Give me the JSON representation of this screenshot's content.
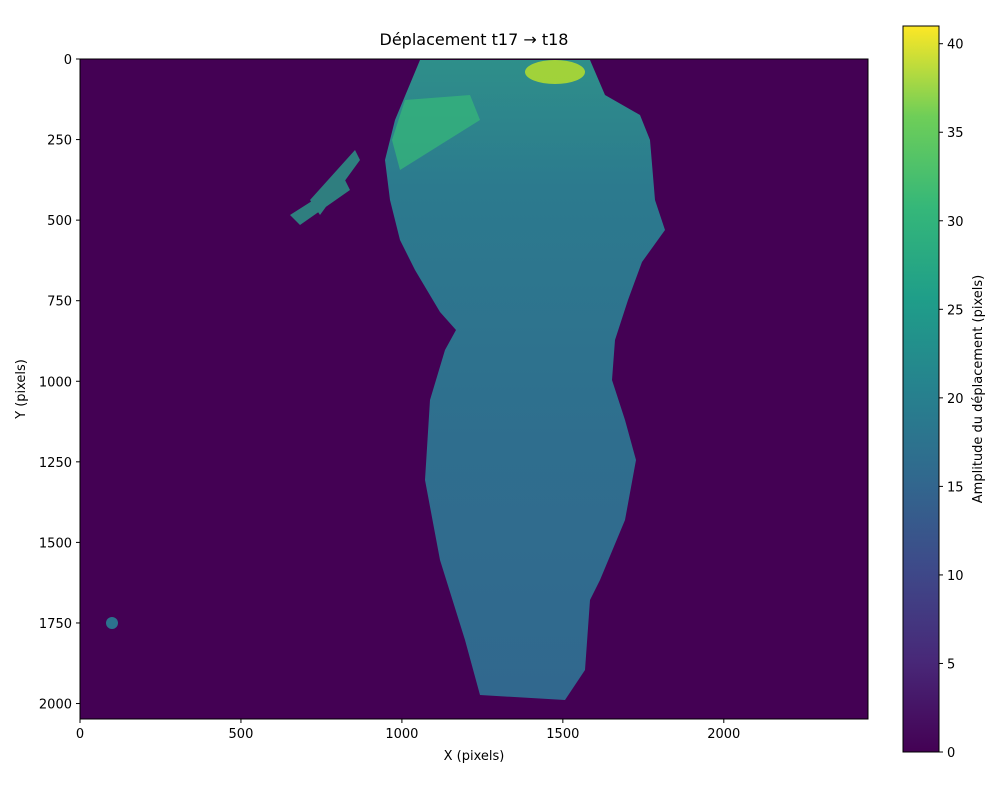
{
  "chart_data": {
    "type": "heatmap",
    "title": "Déplacement t17 → t18",
    "x_label": "X (pixels)",
    "y_label": "Y (pixels)",
    "xlim": [
      0,
      2448
    ],
    "xticks": [
      0,
      500,
      1000,
      1500,
      2000
    ],
    "ylim": [
      2048,
      0
    ],
    "yticks": [
      0,
      250,
      500,
      750,
      1000,
      1250,
      1500,
      1750,
      2000
    ],
    "colormap": "viridis",
    "colorbar": {
      "label": "Amplitude du déplacement (pixels)",
      "lim": [
        0,
        41
      ],
      "ticks": [
        0,
        5,
        10,
        15,
        20,
        25,
        30,
        35,
        40
      ]
    }
  }
}
